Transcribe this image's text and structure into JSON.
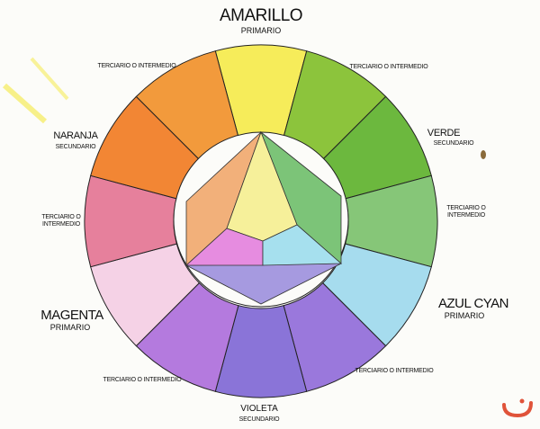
{
  "labels": {
    "yellow": {
      "name": "AMARILLO",
      "type": "PRIMARIO"
    },
    "orange": {
      "name": "NARANJA",
      "type": "SECUNDARIO"
    },
    "green": {
      "name": "VERDE",
      "type": "SECUNDARIO"
    },
    "magenta": {
      "name": "MAGENTA",
      "type": "PRIMARIO"
    },
    "cyan": {
      "name": "AZUL CYAN",
      "type": "PRIMARIO"
    },
    "violet": {
      "name": "VIOLETA",
      "type": "SECUNDARIO"
    },
    "tertiary_top_left": "TERCIARIO O INTERMEDIO",
    "tertiary_top_right": "TERCIARIO O INTERMEDIO",
    "tertiary_left_line1": "TERCIARIO O",
    "tertiary_left_line2": "INTERMEDIO",
    "tertiary_right_line1": "TERCIARIO O",
    "tertiary_right_line2": "INTERMEDIO",
    "tertiary_bottom_left": "TERCIARIO O INTERMEDIO",
    "tertiary_bottom_right": "TERCIARIO O INTERMEDIO"
  },
  "wheel_segments": [
    {
      "name": "amarillo",
      "color": "#f6ec5a"
    },
    {
      "name": "amarillo-verde",
      "color": "#8cc43c"
    },
    {
      "name": "verde",
      "color": "#6cb83e"
    },
    {
      "name": "verde-cyan",
      "color": "#86c678"
    },
    {
      "name": "azul-cyan",
      "color": "#a6dcee"
    },
    {
      "name": "azul-violeta",
      "color": "#9a78dc"
    },
    {
      "name": "violeta",
      "color": "#8a74d8"
    },
    {
      "name": "rojo-violeta",
      "color": "#b47ade"
    },
    {
      "name": "magenta",
      "color": "#f5d2e6"
    },
    {
      "name": "rojo-magenta",
      "color": "#e6809c"
    },
    {
      "name": "naranja",
      "color": "#f28634"
    },
    {
      "name": "amarillo-naranja",
      "color": "#f29a3c"
    }
  ],
  "center_colors": {
    "yellow": "#f6f09a",
    "magenta": "#e68ce0",
    "cyan": "#a6e0ee",
    "orange": "#f2b07a",
    "green": "#7cc478",
    "violet": "#a69ae0"
  },
  "logo_color": "#e0533a"
}
